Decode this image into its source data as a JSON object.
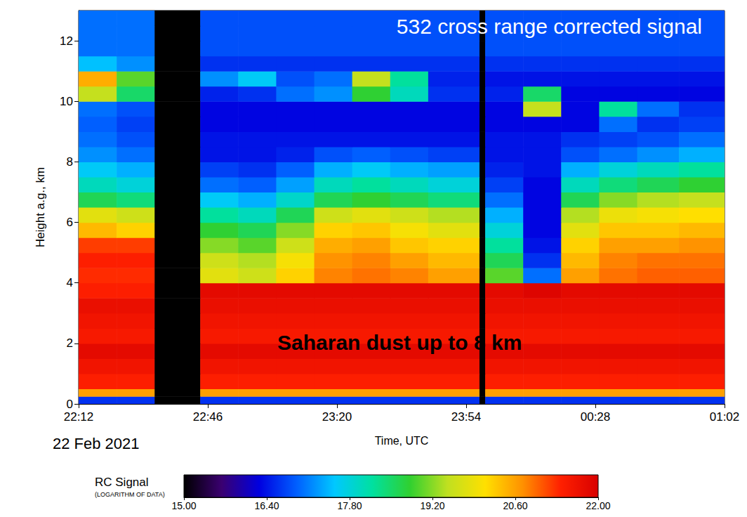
{
  "chart_data": {
    "type": "heatmap",
    "xlabel": "Time, UTC",
    "ylabel": "Height a.g., km",
    "annotations": [
      "532 cross range corrected signal",
      "Saharan dust up to 8 km",
      "22 Feb 2021"
    ],
    "xlim": [
      0,
      170
    ],
    "xticks": [
      {
        "value": 0,
        "label": "22:12"
      },
      {
        "value": 34,
        "label": "22:46"
      },
      {
        "value": 68,
        "label": "23:20"
      },
      {
        "value": 102,
        "label": "23:54"
      },
      {
        "value": 136,
        "label": "00:28"
      },
      {
        "value": 170,
        "label": "01:02"
      }
    ],
    "ylim": [
      0,
      13
    ],
    "yticks": [
      0,
      2,
      4,
      6,
      8,
      10,
      12
    ],
    "grid": false,
    "x_edges": [
      0,
      10,
      20,
      32,
      42,
      52,
      62,
      72,
      82,
      92,
      105.5,
      107,
      117,
      127,
      137,
      147,
      158,
      170
    ],
    "y_edges": [
      0,
      0.25,
      0.5,
      1,
      1.5,
      2,
      2.5,
      3,
      3.5,
      4,
      4.5,
      5,
      5.5,
      6,
      6.5,
      7,
      7.5,
      8,
      8.5,
      9,
      9.5,
      10,
      10.5,
      11,
      11.5,
      12,
      12.5,
      13
    ],
    "cells": [
      [
        16.6,
        16.6,
        15,
        16.6,
        16.6,
        16.6,
        16.6,
        16.6,
        16.6,
        16.6,
        15,
        16.6,
        16.6,
        16.6,
        16.6,
        16.6,
        16.6
      ],
      [
        20.6,
        20.6,
        15,
        20.6,
        20.6,
        20.6,
        20.6,
        20.6,
        20.6,
        20.6,
        15,
        20.6,
        20.6,
        20.6,
        20.6,
        20.6,
        20.6
      ],
      [
        21.4,
        21.4,
        15,
        21.4,
        21.4,
        21.4,
        21.4,
        21.4,
        21.4,
        21.4,
        15,
        21.4,
        21.4,
        21.4,
        21.4,
        21.4,
        21.4
      ],
      [
        21.6,
        21.6,
        15,
        21.6,
        21.6,
        21.6,
        21.6,
        21.6,
        21.6,
        21.6,
        15,
        21.6,
        21.6,
        21.6,
        21.6,
        21.6,
        21.6
      ],
      [
        21.8,
        21.8,
        15,
        21.8,
        21.8,
        21.8,
        21.8,
        21.8,
        21.8,
        21.8,
        15,
        21.8,
        21.8,
        21.8,
        21.8,
        21.8,
        21.8
      ],
      [
        21.5,
        21.5,
        15,
        21.5,
        21.5,
        21.5,
        21.5,
        21.5,
        21.5,
        21.5,
        15,
        21.5,
        21.5,
        21.5,
        21.5,
        21.5,
        21.5
      ],
      [
        21.6,
        21.6,
        15,
        21.6,
        21.6,
        21.6,
        21.6,
        21.6,
        21.6,
        21.6,
        15,
        21.6,
        21.6,
        21.6,
        21.6,
        21.6,
        21.6
      ],
      [
        21.7,
        21.7,
        15,
        21.7,
        21.7,
        21.7,
        21.7,
        21.7,
        21.7,
        21.7,
        15,
        21.7,
        21.7,
        21.7,
        21.7,
        21.7,
        21.7
      ],
      [
        21.4,
        21.4,
        15,
        21.8,
        21.8,
        21.8,
        21.8,
        21.8,
        21.8,
        21.8,
        15,
        21.8,
        21.9,
        21.8,
        21.8,
        21.8,
        21.8
      ],
      [
        21.3,
        21.3,
        15,
        19.8,
        19.6,
        20.2,
        20.8,
        20.9,
        20.8,
        20.6,
        15,
        19.0,
        17.0,
        20.6,
        20.9,
        21.0,
        21.0
      ],
      [
        21.4,
        21.4,
        15,
        19.6,
        19.4,
        20.0,
        20.7,
        20.8,
        20.6,
        20.4,
        15,
        18.6,
        16.6,
        20.4,
        20.8,
        20.9,
        20.9
      ],
      [
        21.2,
        21.2,
        15,
        19.2,
        19.0,
        19.6,
        20.5,
        20.6,
        20.3,
        20.2,
        15,
        18.2,
        16.4,
        20.2,
        20.6,
        20.6,
        20.7
      ],
      [
        20.4,
        20.2,
        15,
        18.8,
        18.6,
        19.2,
        20.2,
        20.3,
        20.0,
        19.8,
        15,
        17.8,
        16.3,
        19.8,
        20.3,
        20.3,
        20.4
      ],
      [
        19.8,
        19.6,
        15,
        18.2,
        18.0,
        18.6,
        19.6,
        19.8,
        19.6,
        19.4,
        15,
        17.4,
        16.3,
        19.4,
        19.9,
        20.0,
        20.1
      ],
      [
        18.6,
        18.4,
        15,
        17.6,
        17.4,
        17.9,
        18.6,
        18.8,
        18.6,
        18.4,
        15,
        17.0,
        16.3,
        18.6,
        19.2,
        19.4,
        19.5
      ],
      [
        18.0,
        17.8,
        15,
        17.0,
        16.9,
        17.3,
        18.0,
        18.2,
        18.0,
        17.8,
        15,
        16.7,
        16.3,
        18.0,
        18.4,
        18.6,
        18.8
      ],
      [
        17.6,
        17.4,
        15,
        16.7,
        16.6,
        16.9,
        17.4,
        17.6,
        17.4,
        17.3,
        15,
        16.5,
        16.4,
        17.4,
        17.8,
        18.0,
        18.2
      ],
      [
        17.2,
        17.0,
        15,
        16.4,
        16.4,
        16.5,
        16.8,
        16.9,
        16.8,
        16.7,
        15,
        16.4,
        16.4,
        16.8,
        17.0,
        17.2,
        17.4
      ],
      [
        17.0,
        16.8,
        15,
        16.4,
        16.4,
        16.4,
        16.4,
        16.4,
        16.4,
        16.4,
        15,
        16.4,
        16.4,
        16.6,
        16.7,
        16.8,
        17.0
      ],
      [
        16.9,
        16.7,
        15,
        16.3,
        16.3,
        16.3,
        16.3,
        16.3,
        16.3,
        16.3,
        15,
        16.3,
        16.3,
        16.3,
        17.0,
        16.6,
        16.7
      ],
      [
        17.0,
        16.8,
        15,
        16.3,
        16.3,
        16.3,
        16.3,
        16.3,
        16.3,
        16.3,
        15,
        16.3,
        19.5,
        16.3,
        18.2,
        17.0,
        16.6
      ],
      [
        19.5,
        18.5,
        15,
        16.5,
        16.6,
        17.0,
        17.2,
        18.8,
        18.0,
        16.6,
        15,
        16.5,
        18.5,
        16.3,
        16.3,
        16.3,
        16.3
      ],
      [
        20.5,
        19.0,
        15,
        17.2,
        17.6,
        16.8,
        17.0,
        19.5,
        18.2,
        16.5,
        15,
        16.4,
        16.4,
        16.4,
        16.4,
        16.4,
        16.4
      ],
      [
        17.5,
        17.2,
        15,
        16.6,
        16.6,
        16.6,
        16.6,
        16.6,
        16.6,
        16.6,
        15,
        16.6,
        16.6,
        16.6,
        16.6,
        16.6,
        16.6
      ],
      [
        17.0,
        17.0,
        15,
        16.8,
        16.8,
        16.8,
        16.8,
        16.8,
        16.8,
        16.8,
        15,
        16.8,
        16.8,
        16.8,
        16.8,
        16.8,
        16.8
      ],
      [
        17.0,
        17.0,
        15,
        16.8,
        16.8,
        16.8,
        16.8,
        16.8,
        16.8,
        16.8,
        15,
        16.8,
        16.8,
        16.8,
        16.8,
        16.8,
        16.8
      ],
      [
        17.0,
        17.0,
        15,
        16.8,
        16.8,
        16.8,
        16.8,
        16.8,
        16.8,
        16.8,
        15,
        16.8,
        16.8,
        16.8,
        16.8,
        16.8,
        16.8
      ]
    ],
    "colorbar": {
      "title": "RC Signal",
      "subtitle": "(LOGARITHM OF DATA)",
      "range": [
        15,
        22
      ],
      "ticks": [
        {
          "value": 15,
          "label": "15.00"
        },
        {
          "value": 16.4,
          "label": "16.40"
        },
        {
          "value": 17.8,
          "label": "17.80"
        },
        {
          "value": 19.2,
          "label": "19.20"
        },
        {
          "value": 20.6,
          "label": "20.60"
        },
        {
          "value": 22,
          "label": "22.00"
        }
      ]
    }
  }
}
